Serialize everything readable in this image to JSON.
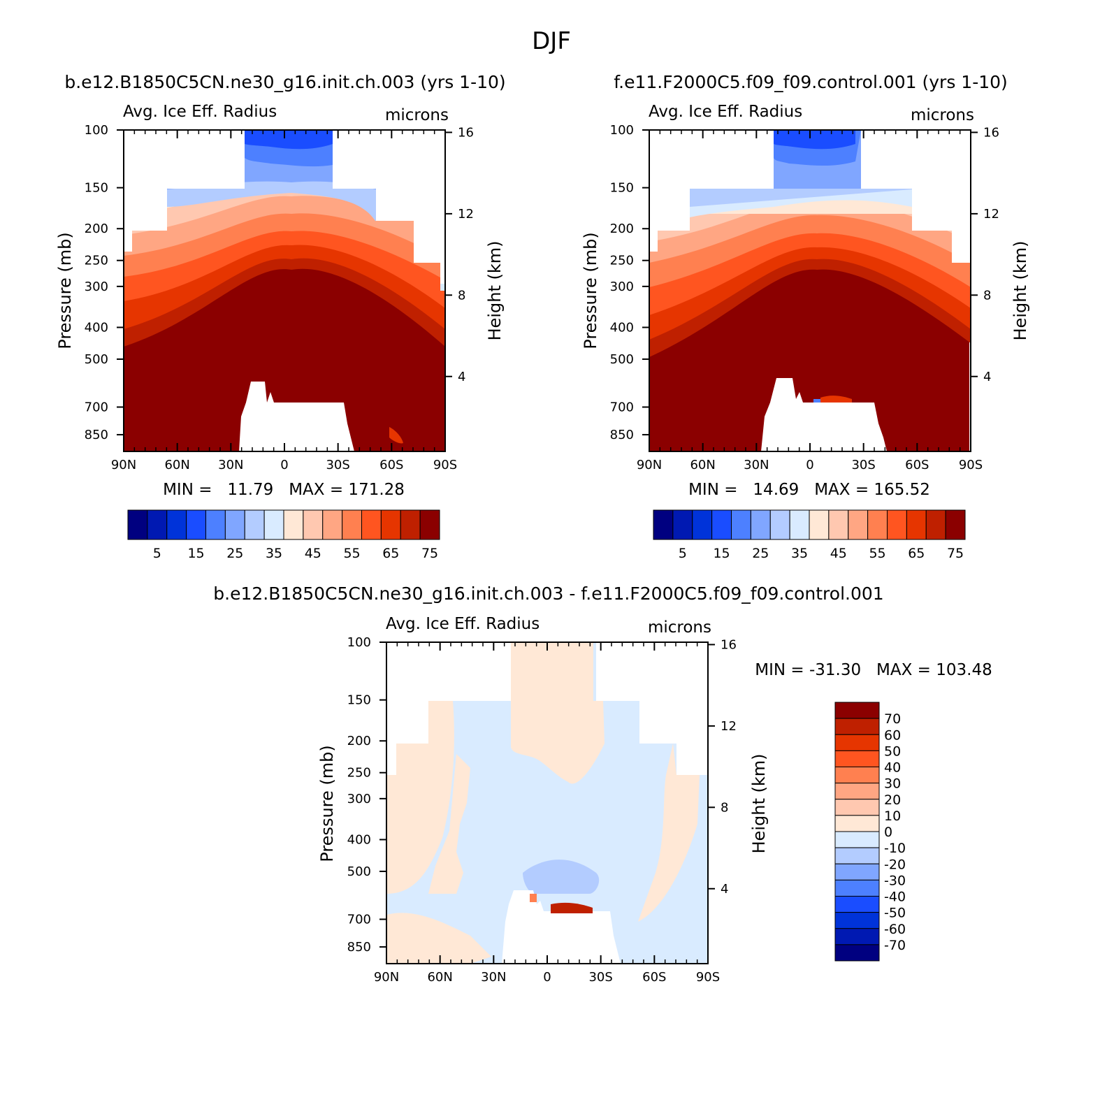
{
  "figure_title": "DJF",
  "colors": {
    "abs_scale": [
      "#000080",
      "#0019b2",
      "#0033d9",
      "#1a4dff",
      "#4d80ff",
      "#80a6ff",
      "#b3ccff",
      "#d9ebff",
      "#ffe8d6",
      "#ffc8b0",
      "#ffa683",
      "#ff8050",
      "#ff5520",
      "#e63500",
      "#bf2000",
      "#8b0000"
    ],
    "diff_scale": [
      "#000080",
      "#0019b2",
      "#0033d9",
      "#1a4dff",
      "#4d80ff",
      "#80a6ff",
      "#b3ccff",
      "#d9ebff",
      "#ffe8d6",
      "#ffc8b0",
      "#ffa683",
      "#ff8050",
      "#ff5520",
      "#e63500",
      "#bf2000",
      "#8b0000"
    ]
  },
  "chart_data": [
    {
      "type": "heatmap",
      "title": "b.e12.B1850C5CN.ne30_g16.init.ch.003 (yrs 1-10)",
      "subtitle_left": "Avg. Ice Eff. Radius",
      "subtitle_right": "microns",
      "ylabel": "Pressure (mb)",
      "ylabel_right": "Height (km)",
      "x_ticks": [
        "90N",
        "60N",
        "30N",
        "0",
        "30S",
        "60S",
        "90S"
      ],
      "y_ticks": [
        "100",
        "150",
        "200",
        "250",
        "300",
        "400",
        "500",
        "700",
        "850"
      ],
      "y2_ticks": [
        "16",
        "12",
        "8",
        "4"
      ],
      "min_max_text": "MIN =   11.79   MAX = 171.28",
      "colorbar_labels": [
        "5",
        "15",
        "25",
        "35",
        "45",
        "55",
        "65",
        "75"
      ]
    },
    {
      "type": "heatmap",
      "title": "f.e11.F2000C5.f09_f09.control.001 (yrs 1-10)",
      "subtitle_left": "Avg. Ice Eff. Radius",
      "subtitle_right": "microns",
      "ylabel": "Pressure (mb)",
      "ylabel_right": "Height (km)",
      "x_ticks": [
        "90N",
        "60N",
        "30N",
        "0",
        "30S",
        "60S",
        "90S"
      ],
      "y_ticks": [
        "100",
        "150",
        "200",
        "250",
        "300",
        "400",
        "500",
        "700",
        "850"
      ],
      "y2_ticks": [
        "16",
        "12",
        "8",
        "4"
      ],
      "min_max_text": "MIN =   14.69   MAX = 165.52",
      "colorbar_labels": [
        "5",
        "15",
        "25",
        "35",
        "45",
        "55",
        "65",
        "75"
      ]
    },
    {
      "type": "heatmap",
      "title": "b.e12.B1850C5CN.ne30_g16.init.ch.003 - f.e11.F2000C5.f09_f09.control.001",
      "subtitle_left": "Avg. Ice Eff. Radius",
      "subtitle_right": "microns",
      "ylabel": "Pressure (mb)",
      "ylabel_right": "Height (km)",
      "x_ticks": [
        "90N",
        "60N",
        "30N",
        "0",
        "30S",
        "60S",
        "90S"
      ],
      "y_ticks": [
        "100",
        "150",
        "200",
        "250",
        "300",
        "400",
        "500",
        "700",
        "850"
      ],
      "y2_ticks": [
        "16",
        "12",
        "8",
        "4"
      ],
      "min_max_text": "MIN = -31.30   MAX = 103.48",
      "colorbar_labels": [
        "70",
        "60",
        "50",
        "40",
        "30",
        "20",
        "10",
        "0",
        "-10",
        "-20",
        "-30",
        "-40",
        "-50",
        "-60",
        "-70"
      ]
    }
  ]
}
